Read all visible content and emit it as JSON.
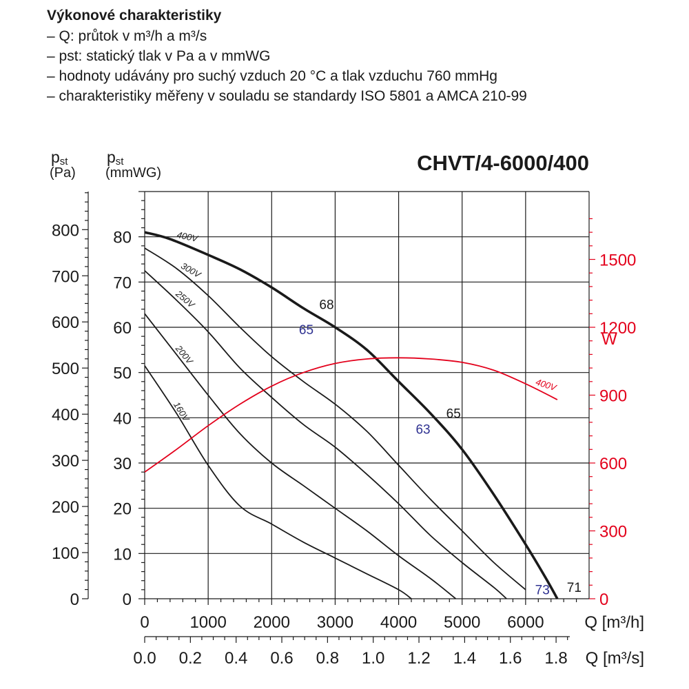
{
  "header": {
    "title": "Výkonové charakteristiky",
    "lines": [
      "– Q: průtok v m³/h a m³/s",
      "– pst: statický tlak v Pa a v mmWG",
      "– hodnoty udávány pro suchý vzduch 20 °C a tlak vzduchu 760 mmHg",
      "– charakteristiky měřeny v souladu se standardy ISO 5801 a AMCA 210-99"
    ]
  },
  "chart_data": {
    "type": "line",
    "title": "CHVT/4-6000/400",
    "x_axis_primary": {
      "label": "Q [m³/h]",
      "range": [
        0,
        7000
      ],
      "ticks": [
        0,
        1000,
        2000,
        3000,
        4000,
        5000,
        6000
      ]
    },
    "x_axis_secondary": {
      "label": "Q [m³/s]",
      "ticks": [
        "0.0",
        "0.2",
        "0.4",
        "0.6",
        "0.8",
        "1.0",
        "1.2",
        "1.4",
        "1.6",
        "1.8"
      ]
    },
    "y_axis_left_pa": {
      "label_main": "p",
      "label_sub": "st",
      "label_unit": "(Pa)",
      "ticks": [
        0,
        100,
        200,
        300,
        400,
        500,
        600,
        700,
        800
      ]
    },
    "y_axis_left_mmwg": {
      "label_main": "p",
      "label_sub": "st",
      "label_unit": "(mmWG)",
      "range": [
        0,
        90
      ],
      "ticks": [
        0,
        10,
        20,
        30,
        40,
        50,
        60,
        70,
        80
      ]
    },
    "y_axis_right_power": {
      "label": "W",
      "range": [
        0,
        1800
      ],
      "ticks": [
        0,
        300,
        600,
        900,
        1200,
        1500
      ],
      "color": "#e3001b"
    },
    "grid": true,
    "series": [
      {
        "name": "400V",
        "axis": "mmWG",
        "bold": true,
        "x": [
          0,
          400,
          1000,
          1500,
          2000,
          2500,
          3000,
          3500,
          4000,
          4500,
          5000,
          5500,
          6000,
          6300,
          6500
        ],
        "y": [
          81,
          79.5,
          76,
          72.8,
          68.8,
          64.2,
          60,
          55,
          48,
          41,
          33,
          23,
          12,
          5,
          0
        ]
      },
      {
        "name": "300V",
        "axis": "mmWG",
        "x": [
          0,
          500,
          1000,
          1500,
          2000,
          2500,
          3000,
          3500,
          4000,
          4500,
          5000,
          5500,
          6000
        ],
        "y": [
          77.5,
          73,
          67,
          60,
          53.5,
          48,
          43,
          37,
          29.5,
          22,
          15,
          8,
          2
        ]
      },
      {
        "name": "250V",
        "axis": "mmWG",
        "x": [
          0,
          500,
          1000,
          1500,
          2000,
          2500,
          3000,
          3500,
          4000,
          4500,
          5000,
          5500,
          5700
        ],
        "y": [
          72.5,
          66,
          59,
          51,
          44.5,
          38.5,
          33.5,
          27.5,
          21,
          14,
          8,
          2.5,
          0
        ]
      },
      {
        "name": "200V",
        "axis": "mmWG",
        "x": [
          0,
          500,
          1000,
          1500,
          2000,
          2500,
          3000,
          3500,
          4000,
          4500,
          4900
        ],
        "y": [
          63,
          54,
          45,
          36.5,
          30,
          25,
          20,
          15,
          9.5,
          4.5,
          0
        ]
      },
      {
        "name": "160V",
        "axis": "mmWG",
        "x": [
          0,
          500,
          1000,
          1500,
          2000,
          2500,
          3000,
          3500,
          4000,
          4200
        ],
        "y": [
          51.5,
          41,
          29.5,
          20.5,
          16.5,
          12.5,
          9,
          5.5,
          2,
          0
        ]
      },
      {
        "name": "400V",
        "axis": "W",
        "color": "#e3001b",
        "x": [
          0,
          500,
          1000,
          1500,
          2000,
          2500,
          3000,
          3500,
          4000,
          4500,
          5000,
          5500,
          6000,
          6500
        ],
        "y": [
          560,
          660,
          765,
          860,
          940,
          1000,
          1040,
          1060,
          1065,
          1060,
          1045,
          1010,
          950,
          880
        ]
      }
    ],
    "annotations": [
      {
        "text": "68",
        "x": 2750,
        "y": 64,
        "color": "#1a1a1a"
      },
      {
        "text": "65",
        "x": 2430,
        "y": 58.5,
        "color": "#2e3191"
      },
      {
        "text": "65",
        "x": 4750,
        "y": 40,
        "color": "#1a1a1a"
      },
      {
        "text": "63",
        "x": 4270,
        "y": 36.5,
        "color": "#2e3191"
      },
      {
        "text": "73",
        "x": 6150,
        "y": 1,
        "color": "#2e3191"
      },
      {
        "text": "71",
        "x": 6650,
        "y": 1.5,
        "color": "#1a1a1a"
      }
    ]
  }
}
